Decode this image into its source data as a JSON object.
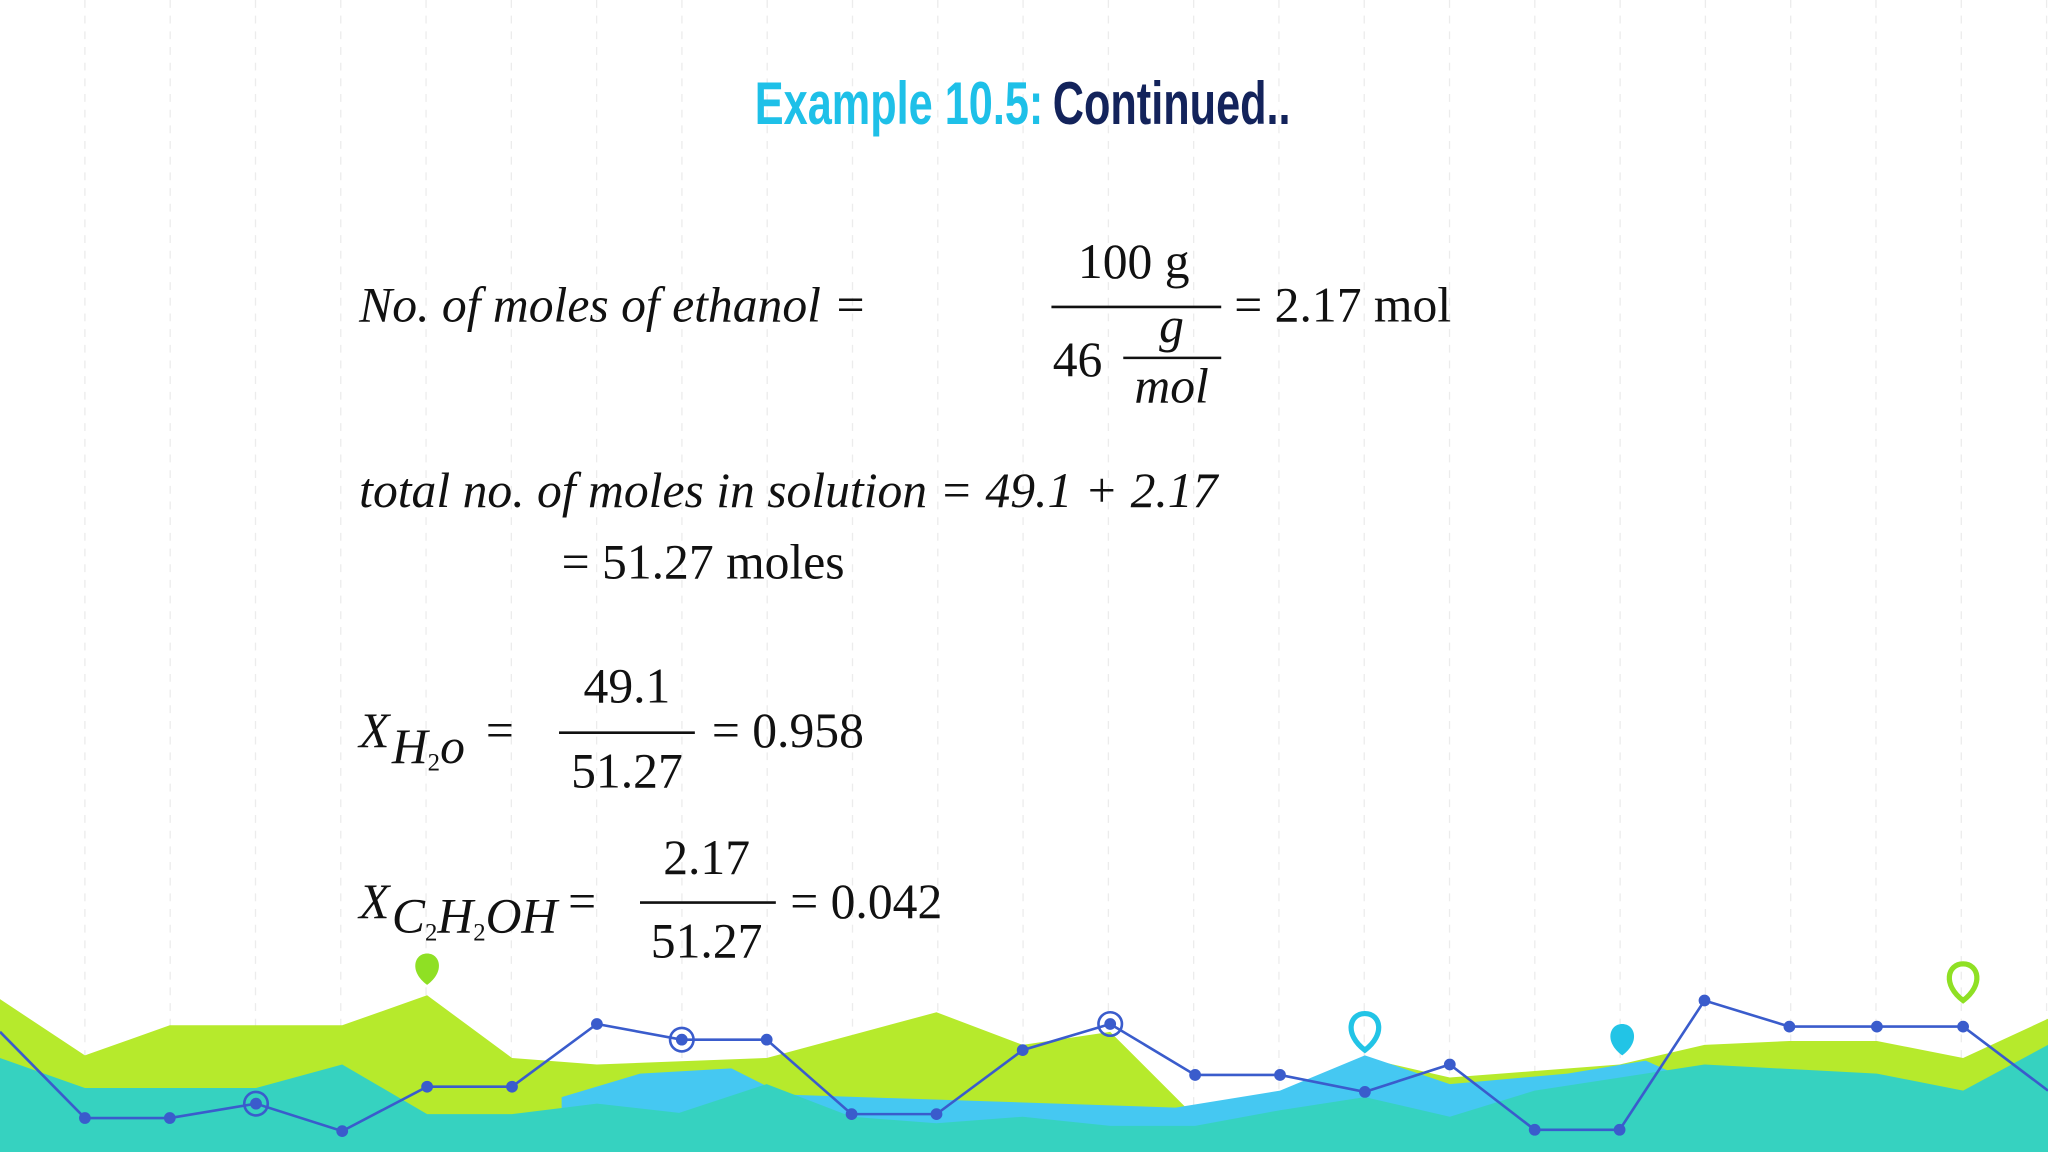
{
  "title": {
    "prefix": "Example 10.5:",
    "rest": "Continued.."
  },
  "equations": [
    {
      "lhs": "No. of moles of ethanol =",
      "numerator": "100 g",
      "denominator": "46",
      "unit_numerator": "g",
      "unit_denominator": "mol",
      "rhs": "= 2.17 mol"
    },
    {
      "line1": "total no. of moles in solution = 49.1 + 2.17",
      "line2": "= 51.27 moles"
    },
    {
      "symbol": "X",
      "subscript": [
        "H",
        "2",
        "o"
      ],
      "equals": "=",
      "numerator": "49.1",
      "denominator": "51.27",
      "rhs": "= 0.958"
    },
    {
      "symbol": "X",
      "subscript": [
        "C",
        "2",
        "H",
        "2",
        "OH"
      ],
      "equals": "=",
      "numerator": "2.17",
      "denominator": "51.27",
      "rhs": "= 0.042"
    }
  ]
}
